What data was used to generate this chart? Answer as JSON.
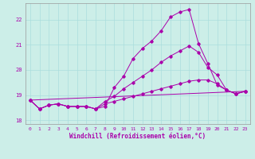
{
  "xlabel": "Windchill (Refroidissement éolien,°C)",
  "background_color": "#cceee8",
  "line_color": "#aa00aa",
  "grid_color": "#aadddd",
  "xlim": [
    -0.5,
    23.5
  ],
  "ylim": [
    17.85,
    22.65
  ],
  "yticks": [
    18,
    19,
    20,
    21,
    22
  ],
  "xticks": [
    0,
    1,
    2,
    3,
    4,
    5,
    6,
    7,
    8,
    9,
    10,
    11,
    12,
    13,
    14,
    15,
    16,
    17,
    18,
    19,
    20,
    21,
    22,
    23
  ],
  "y_main": [
    18.8,
    18.45,
    18.6,
    18.65,
    18.55,
    18.55,
    18.55,
    18.45,
    18.55,
    19.3,
    19.75,
    20.45,
    20.85,
    21.15,
    21.55,
    22.1,
    22.3,
    22.4,
    21.05,
    20.25,
    19.4,
    19.2,
    19.05,
    19.15
  ],
  "y_upper": [
    18.8,
    18.45,
    18.6,
    18.65,
    18.55,
    18.55,
    18.55,
    18.45,
    18.75,
    18.95,
    19.25,
    19.5,
    19.75,
    20.0,
    20.3,
    20.55,
    20.75,
    20.95,
    20.7,
    20.1,
    19.8,
    19.2,
    19.05,
    19.15
  ],
  "y_lower": [
    18.8,
    18.45,
    18.6,
    18.65,
    18.55,
    18.55,
    18.55,
    18.45,
    18.65,
    18.75,
    18.85,
    18.95,
    19.05,
    19.15,
    19.25,
    19.35,
    19.45,
    19.55,
    19.6,
    19.6,
    19.45,
    19.2,
    19.05,
    19.15
  ],
  "y_diag_start": 18.8,
  "y_diag_end": 19.15,
  "marker_size": 1.8,
  "linewidth": 0.7,
  "tick_fontsize": 4.5,
  "xlabel_fontsize": 5.5
}
